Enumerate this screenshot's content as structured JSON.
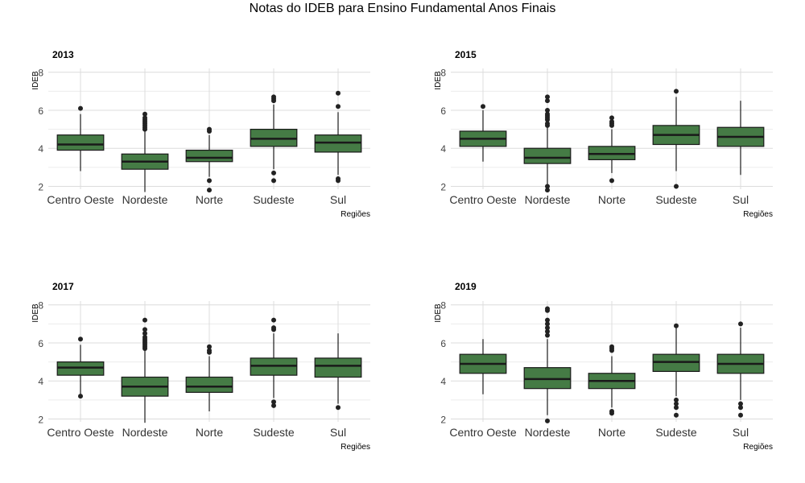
{
  "title": "Notas do IDEB para Ensino Fundamental Anos Finais",
  "colors": {
    "box_fill": "#457b45",
    "box_stroke": "#1a1a1a",
    "grid": "#dcdcdc",
    "outlier": "#222222"
  },
  "chart_data": [
    {
      "type": "boxplot",
      "title": "2013",
      "xlabel": "Regiões",
      "ylabel": "IDEB",
      "ylim": [
        1.85,
        8.2
      ],
      "yticks": [
        "2",
        "4",
        "6",
        "8"
      ],
      "categories": [
        "Centro Oeste",
        "Nordeste",
        "Norte",
        "Sudeste",
        "Sul"
      ],
      "boxes": [
        {
          "q1": 3.9,
          "median": 4.2,
          "q3": 4.7,
          "whisker_low": 2.8,
          "whisker_high": 5.8,
          "outliers": [
            6.1
          ]
        },
        {
          "q1": 2.9,
          "median": 3.3,
          "q3": 3.7,
          "whisker_low": 1.7,
          "whisker_high": 4.9,
          "outliers": [
            5.0,
            5.1,
            5.2,
            5.3,
            5.4,
            5.5,
            5.6,
            5.8
          ]
        },
        {
          "q1": 3.3,
          "median": 3.5,
          "q3": 3.9,
          "whisker_low": 2.5,
          "whisker_high": 4.7,
          "outliers": [
            4.9,
            5.0,
            2.3,
            1.8
          ]
        },
        {
          "q1": 4.1,
          "median": 4.5,
          "q3": 5.0,
          "whisker_low": 2.9,
          "whisker_high": 6.3,
          "outliers": [
            6.5,
            6.6,
            6.7,
            2.7,
            2.3
          ]
        },
        {
          "q1": 3.8,
          "median": 4.3,
          "q3": 4.7,
          "whisker_low": 2.6,
          "whisker_high": 5.9,
          "outliers": [
            6.2,
            6.9,
            2.4,
            2.3
          ]
        }
      ]
    },
    {
      "type": "boxplot",
      "title": "2015",
      "xlabel": "Regiões",
      "ylabel": "IDEB",
      "ylim": [
        1.85,
        8.2
      ],
      "yticks": [
        "2",
        "4",
        "6",
        "8"
      ],
      "categories": [
        "Centro Oeste",
        "Nordeste",
        "Norte",
        "Sudeste",
        "Sul"
      ],
      "boxes": [
        {
          "q1": 4.1,
          "median": 4.5,
          "q3": 4.9,
          "whisker_low": 3.3,
          "whisker_high": 6.0,
          "outliers": [
            6.2
          ]
        },
        {
          "q1": 3.2,
          "median": 3.5,
          "q3": 4.0,
          "whisker_low": 2.1,
          "whisker_high": 5.1,
          "outliers": [
            5.2,
            5.3,
            5.5,
            5.6,
            5.7,
            5.8,
            6.0,
            6.5,
            6.7,
            2.0,
            1.8
          ]
        },
        {
          "q1": 3.4,
          "median": 3.7,
          "q3": 4.1,
          "whisker_low": 2.7,
          "whisker_high": 5.0,
          "outliers": [
            5.2,
            5.3,
            5.4,
            5.6,
            2.3
          ]
        },
        {
          "q1": 4.2,
          "median": 4.7,
          "q3": 5.2,
          "whisker_low": 2.8,
          "whisker_high": 6.7,
          "outliers": [
            7.0,
            2.0
          ]
        },
        {
          "q1": 4.1,
          "median": 4.6,
          "q3": 5.1,
          "whisker_low": 2.6,
          "whisker_high": 6.5,
          "outliers": []
        }
      ]
    },
    {
      "type": "boxplot",
      "title": "2017",
      "xlabel": "Regiões",
      "ylabel": "IDEB",
      "ylim": [
        1.85,
        8.2
      ],
      "yticks": [
        "2",
        "4",
        "6",
        "8"
      ],
      "categories": [
        "Centro Oeste",
        "Nordeste",
        "Norte",
        "Sudeste",
        "Sul"
      ],
      "boxes": [
        {
          "q1": 4.3,
          "median": 4.7,
          "q3": 5.0,
          "whisker_low": 3.3,
          "whisker_high": 5.9,
          "outliers": [
            6.2,
            3.2
          ]
        },
        {
          "q1": 3.2,
          "median": 3.7,
          "q3": 4.2,
          "whisker_low": 1.8,
          "whisker_high": 5.6,
          "outliers": [
            5.7,
            5.8,
            5.9,
            6.0,
            6.1,
            6.2,
            6.3,
            6.5,
            6.7,
            7.2
          ]
        },
        {
          "q1": 3.4,
          "median": 3.7,
          "q3": 4.2,
          "whisker_low": 2.4,
          "whisker_high": 5.3,
          "outliers": [
            5.5,
            5.6,
            5.8
          ]
        },
        {
          "q1": 4.3,
          "median": 4.8,
          "q3": 5.2,
          "whisker_low": 3.1,
          "whisker_high": 6.5,
          "outliers": [
            6.7,
            6.8,
            7.2,
            2.9,
            2.7
          ]
        },
        {
          "q1": 4.2,
          "median": 4.8,
          "q3": 5.2,
          "whisker_low": 2.8,
          "whisker_high": 6.5,
          "outliers": [
            2.6
          ]
        }
      ]
    },
    {
      "type": "boxplot",
      "title": "2019",
      "xlabel": "Regiões",
      "ylabel": "IDEB",
      "ylim": [
        1.85,
        8.2
      ],
      "yticks": [
        "2",
        "4",
        "6",
        "8"
      ],
      "categories": [
        "Centro Oeste",
        "Nordeste",
        "Norte",
        "Sudeste",
        "Sul"
      ],
      "boxes": [
        {
          "q1": 4.4,
          "median": 4.9,
          "q3": 5.4,
          "whisker_low": 3.3,
          "whisker_high": 6.2,
          "outliers": []
        },
        {
          "q1": 3.6,
          "median": 4.1,
          "q3": 4.7,
          "whisker_low": 2.2,
          "whisker_high": 6.2,
          "outliers": [
            6.4,
            6.6,
            6.8,
            7.0,
            7.2,
            7.7,
            7.8,
            1.9
          ]
        },
        {
          "q1": 3.6,
          "median": 4.0,
          "q3": 4.4,
          "whisker_low": 2.6,
          "whisker_high": 5.3,
          "outliers": [
            5.6,
            5.7,
            5.8,
            2.4,
            2.3
          ]
        },
        {
          "q1": 4.5,
          "median": 5.0,
          "q3": 5.4,
          "whisker_low": 3.2,
          "whisker_high": 6.8,
          "outliers": [
            6.9,
            3.0,
            2.8,
            2.6,
            2.2
          ]
        },
        {
          "q1": 4.4,
          "median": 4.9,
          "q3": 5.4,
          "whisker_low": 3.0,
          "whisker_high": 6.8,
          "outliers": [
            7.0,
            2.8,
            2.6,
            2.2
          ]
        }
      ]
    }
  ]
}
